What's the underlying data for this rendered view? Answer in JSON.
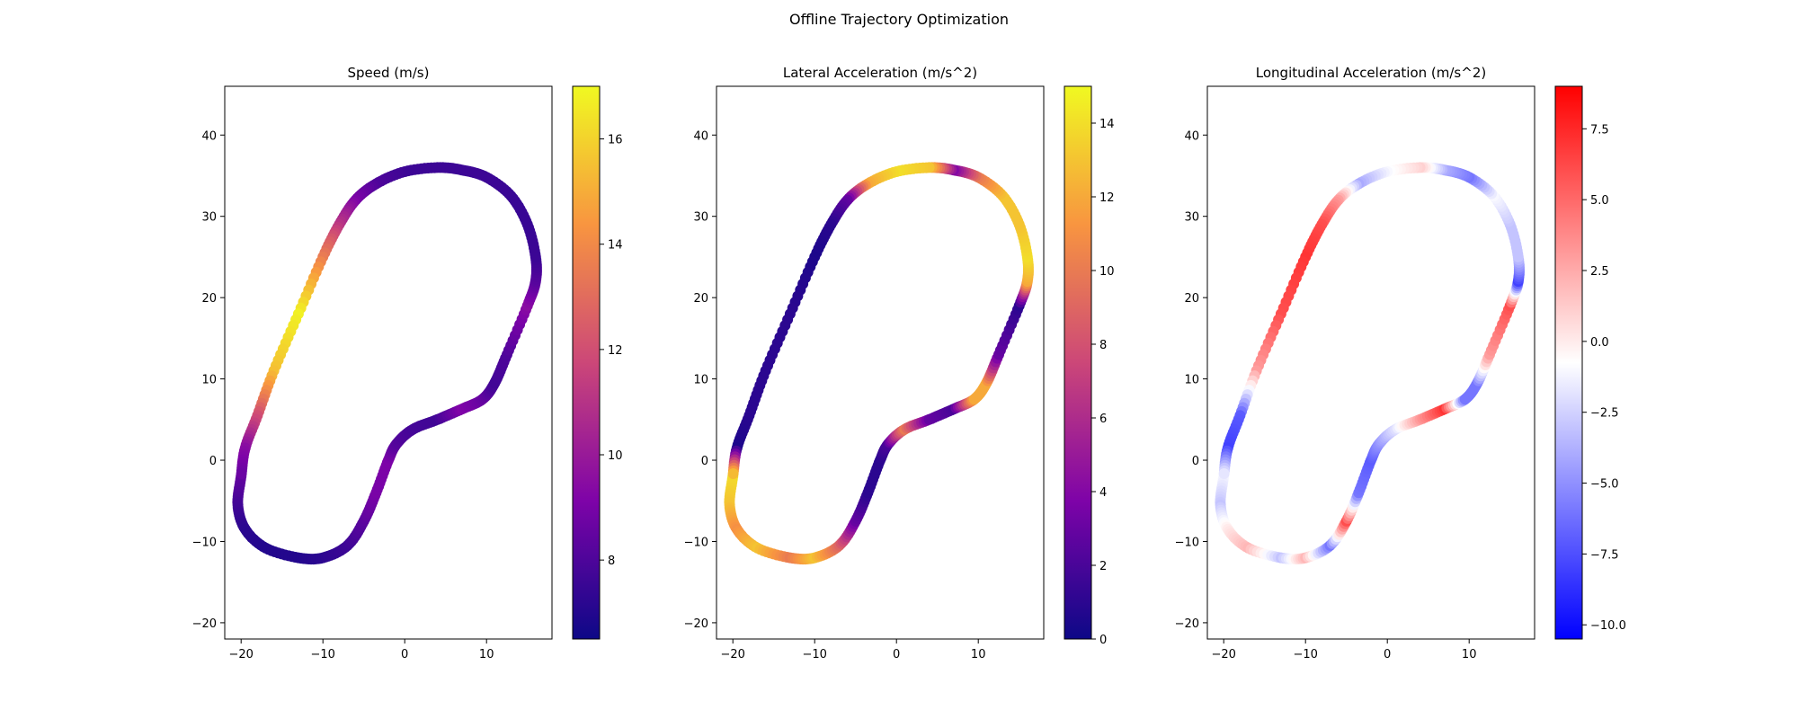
{
  "figure": {
    "suptitle": "Offline Trajectory Optimization"
  },
  "track": {
    "points": [
      [
        -20,
        -2
      ],
      [
        -20.4,
        -5.5
      ],
      [
        -19.5,
        -8.5
      ],
      [
        -17,
        -10.8
      ],
      [
        -13,
        -12
      ],
      [
        -10,
        -12
      ],
      [
        -7,
        -10.5
      ],
      [
        -5,
        -7.5
      ],
      [
        -3.5,
        -4
      ],
      [
        -2,
        0
      ],
      [
        -1,
        2
      ],
      [
        1,
        3.8
      ],
      [
        4,
        5
      ],
      [
        7,
        6.3
      ],
      [
        9.5,
        7.5
      ],
      [
        11,
        9.5
      ],
      [
        12.5,
        13
      ],
      [
        15,
        19
      ],
      [
        16,
        22
      ],
      [
        16,
        25
      ],
      [
        15,
        29
      ],
      [
        13,
        32.5
      ],
      [
        10,
        34.8
      ],
      [
        7,
        35.7
      ],
      [
        4,
        36
      ],
      [
        0,
        35.5
      ],
      [
        -3.5,
        34
      ],
      [
        -6,
        32
      ],
      [
        -8,
        29
      ],
      [
        -10,
        25
      ],
      [
        -13,
        18
      ],
      [
        -16,
        11
      ],
      [
        -18,
        5.5
      ],
      [
        -19.5,
        1.5
      ]
    ],
    "speed": [
      8.6,
      7.8,
      7.2,
      7.0,
      7.0,
      7.2,
      7.6,
      8.3,
      9.0,
      9.1,
      8.2,
      7.8,
      7.7,
      9.2,
      8.6,
      7.7,
      8.0,
      9.5,
      8.3,
      7.6,
      7.5,
      7.5,
      7.6,
      7.6,
      7.6,
      7.6,
      8.0,
      9.0,
      11.0,
      13.5,
      16.8,
      15.5,
      12.0,
      9.5
    ],
    "lateral_accel": [
      14,
      13,
      11,
      13,
      10,
      13,
      9,
      3,
      1,
      1,
      2,
      10,
      3,
      2,
      12,
      12,
      3,
      1,
      12,
      14,
      13,
      13,
      10,
      4,
      13,
      14,
      12,
      3,
      1,
      0.5,
      1,
      1,
      1,
      0.5
    ],
    "longitudinal_accel": [
      -1,
      -3,
      0,
      2,
      -3,
      2,
      -6,
      6,
      -6,
      -7,
      -5,
      -2,
      3,
      7,
      -6,
      -6,
      3,
      6,
      -8,
      -3,
      -3,
      -1,
      -6,
      -4,
      1,
      -1,
      -4,
      3,
      6,
      7,
      6,
      3,
      -7,
      -8
    ]
  },
  "chart_data": [
    {
      "type": "scatter",
      "title": "Speed (m/s)",
      "xlim": [
        -22,
        18
      ],
      "ylim": [
        -22,
        46
      ],
      "xticks": [
        -20,
        -10,
        0,
        10
      ],
      "yticks": [
        -20,
        -10,
        0,
        10,
        20,
        30,
        40
      ],
      "colorbar": {
        "cmap": "plasma",
        "min": 6.5,
        "max": 17.0,
        "ticks": [
          8,
          10,
          12,
          14,
          16
        ]
      },
      "value_key": "speed"
    },
    {
      "type": "scatter",
      "title": "Lateral Acceleration (m/s^2)",
      "xlim": [
        -22,
        18
      ],
      "ylim": [
        -22,
        46
      ],
      "xticks": [
        -20,
        -10,
        0,
        10
      ],
      "yticks": [
        -20,
        -10,
        0,
        10,
        20,
        30,
        40
      ],
      "colorbar": {
        "cmap": "plasma",
        "min": 0,
        "max": 15,
        "ticks": [
          0,
          2,
          4,
          6,
          8,
          10,
          12,
          14
        ]
      },
      "value_key": "lateral_accel"
    },
    {
      "type": "scatter",
      "title": "Longitudinal Acceleration (m/s^2)",
      "xlim": [
        -22,
        18
      ],
      "ylim": [
        -22,
        46
      ],
      "xticks": [
        -20,
        -10,
        0,
        10
      ],
      "yticks": [
        -20,
        -10,
        0,
        10,
        20,
        30,
        40
      ],
      "colorbar": {
        "cmap": "bwr",
        "min": -10.5,
        "max": 9.0,
        "ticks": [
          -10.0,
          -7.5,
          -5.0,
          -2.5,
          0.0,
          2.5,
          5.0,
          7.5
        ]
      },
      "value_key": "longitudinal_accel"
    }
  ]
}
